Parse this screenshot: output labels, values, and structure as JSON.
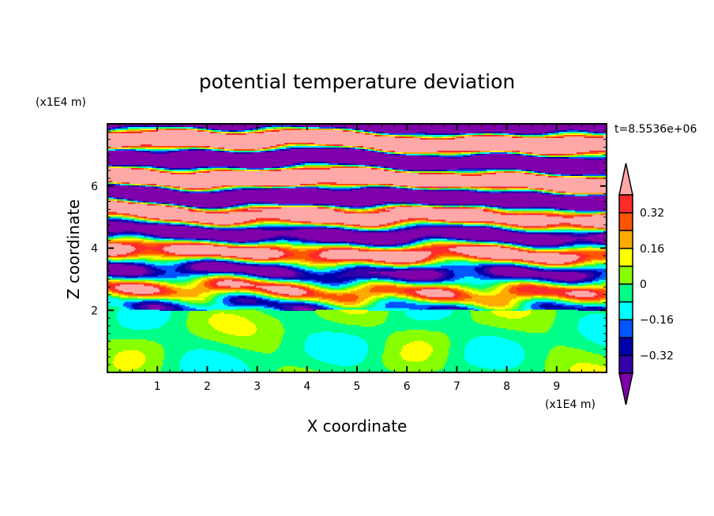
{
  "chart_data": {
    "type": "heatmap",
    "subtype": "filled-contour",
    "title": "potential temperature deviation",
    "xlabel": "X coordinate",
    "ylabel": "Z coordinate",
    "x_unit": "(x1E4 m)",
    "y_unit": "(x1E4 m)",
    "time_label": "t=8.5536e+06",
    "xlim": [
      0,
      10
    ],
    "ylim": [
      0,
      8
    ],
    "x_ticks": [
      "1",
      "2",
      "3",
      "4",
      "5",
      "6",
      "7",
      "8",
      "9"
    ],
    "y_ticks": [
      "2",
      "4",
      "6"
    ],
    "colorbar": {
      "levels": [
        -0.4,
        -0.32,
        -0.24,
        -0.16,
        -0.08,
        0,
        0.08,
        0.16,
        0.24,
        0.32,
        0.4
      ],
      "tick_labels": [
        "0.32",
        "0.16",
        "0",
        "−0.16",
        "−0.32"
      ],
      "tick_values": [
        0.32,
        0.16,
        0,
        -0.16,
        -0.32
      ],
      "colors": [
        "#7f00aa",
        "#3300aa",
        "#0000aa",
        "#0055ff",
        "#00ffff",
        "#00ff88",
        "#88ff00",
        "#ffff00",
        "#ffaa00",
        "#ff5500",
        "#ff2a2a",
        "#ffa8a8"
      ],
      "extend": "both"
    }
  }
}
